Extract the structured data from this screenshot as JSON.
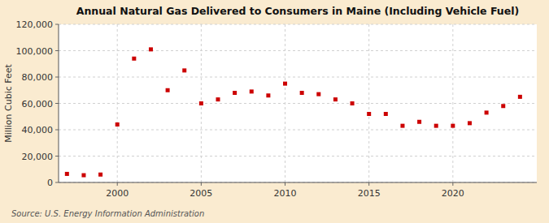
{
  "chart_data": {
    "type": "scatter",
    "title": "Annual Natural Gas Delivered to Consumers in Maine (Including Vehicle Fuel)",
    "y_label": "Million Cubic Feet",
    "source": "Source: U.S. Energy Information Administration",
    "x": [
      1997,
      1998,
      1999,
      2000,
      2001,
      2002,
      2003,
      2004,
      2005,
      2006,
      2007,
      2008,
      2009,
      2010,
      2011,
      2012,
      2013,
      2014,
      2015,
      2016,
      2017,
      2018,
      2019,
      2020,
      2021,
      2022,
      2023,
      2024
    ],
    "values": [
      6500,
      5500,
      6000,
      44000,
      94000,
      101000,
      70000,
      85000,
      60000,
      63000,
      68000,
      69000,
      66000,
      75000,
      68000,
      67000,
      63000,
      60000,
      52000,
      52000,
      43000,
      46000,
      43000,
      43000,
      45000,
      53000,
      58000,
      65000
    ],
    "color": "#cc0000",
    "marker": "square",
    "xlim": [
      1996.5,
      2025
    ],
    "xticks": [
      2000,
      2005,
      2010,
      2015,
      2020
    ],
    "ylim": [
      0,
      120000
    ],
    "yticks": [
      0,
      {
        "value": 20000,
        "label": "20,000"
      },
      {
        "value": 40000,
        "label": "40,000"
      },
      {
        "value": 60000,
        "label": "60,000"
      },
      {
        "value": 80000,
        "label": "80,000"
      },
      {
        "value": 100000,
        "label": "100,000"
      },
      {
        "value": 120000,
        "label": "120,000"
      }
    ],
    "grid": true
  }
}
